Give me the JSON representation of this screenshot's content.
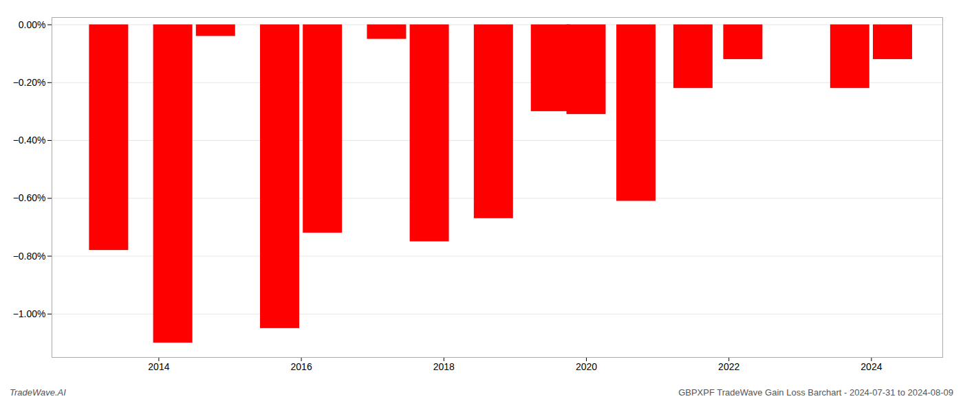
{
  "chart_data": {
    "type": "bar",
    "title": "GBPXPF TradeWave Gain Loss Barchart - 2024-07-31 to 2024-08-09",
    "annotations": [
      "TradeWave.AI"
    ],
    "x": [
      2013.3,
      2014.2,
      2014.8,
      2015.7,
      2016.3,
      2017.2,
      2017.8,
      2018.7,
      2019.5,
      2020.0,
      2020.7,
      2021.5,
      2022.2,
      2022.8,
      2023.7,
      2024.3
    ],
    "values": [
      -0.0078,
      -0.011,
      -0.0004,
      -0.0105,
      -0.0072,
      -0.0005,
      -0.0075,
      -0.0067,
      -0.003,
      -0.0031,
      -0.0061,
      -0.0022,
      -0.0012,
      -0.0,
      -0.0022,
      -0.0012
    ],
    "color": "#ff0000",
    "xlim": [
      2012.5,
      2025.0
    ],
    "xticks": [
      2014,
      2016,
      2018,
      2020,
      2022,
      2024
    ],
    "ylim": [
      -0.0115,
      0.00025
    ],
    "yticks": [
      {
        "value": 0.0,
        "label": "0.00%"
      },
      {
        "value": -0.002,
        "label": "−0.20%"
      },
      {
        "value": -0.004,
        "label": "−0.40%"
      },
      {
        "value": -0.006,
        "label": "−0.60%"
      },
      {
        "value": -0.008,
        "label": "−0.80%"
      },
      {
        "value": -0.01,
        "label": "−1.00%"
      }
    ],
    "grid": true
  }
}
